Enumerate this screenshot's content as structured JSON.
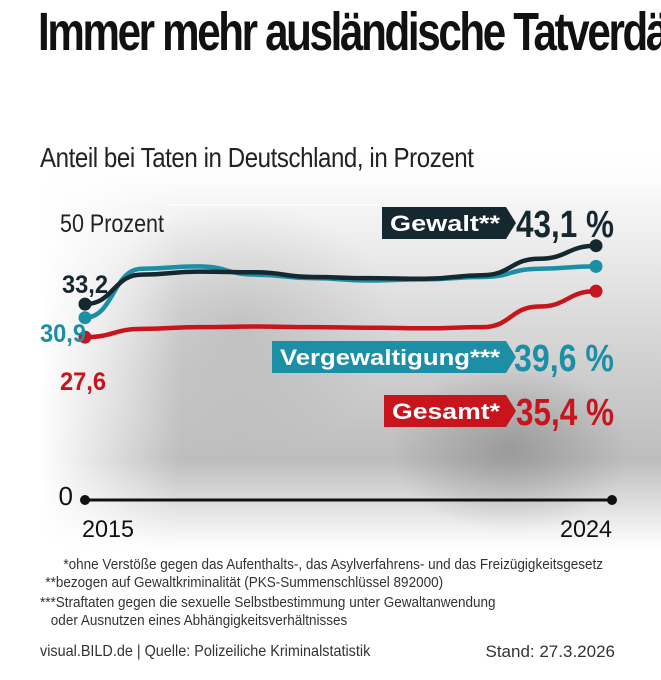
{
  "colors": {
    "gewalt": "#152830",
    "vergewaltigung": "#1c8fa6",
    "gesamt": "#c8141c"
  },
  "chart_data": {
    "type": "line",
    "title": "Immer mehr ausländische Tatverdächtige",
    "subtitle": "Anteil bei Taten in Deutschland, in Prozent",
    "x": [
      2015,
      2016,
      2017,
      2018,
      2019,
      2020,
      2021,
      2022,
      2023,
      2024
    ],
    "x_tick_labels": [
      "2015",
      "2024"
    ],
    "y_tick_labels": [
      "0",
      "50 Prozent"
    ],
    "ylim": [
      0,
      50
    ],
    "series": [
      {
        "name": "Gewalt**",
        "key": "gewalt",
        "values": [
          33.2,
          38.2,
          38.7,
          38.6,
          37.8,
          37.6,
          37.5,
          38.1,
          40.9,
          43.1
        ],
        "start_label": "33,2",
        "end_label": "43,1 %"
      },
      {
        "name": "Vergewaltigung***",
        "key": "vergewaltigung",
        "values": [
          30.9,
          39.2,
          39.6,
          38.2,
          37.6,
          37.2,
          37.4,
          37.8,
          39.2,
          39.6
        ],
        "start_label": "30,9",
        "end_label": "39,6 %"
      },
      {
        "name": "Gesamt*",
        "key": "gesamt",
        "values": [
          27.6,
          29.0,
          29.3,
          29.4,
          29.3,
          29.2,
          29.1,
          29.3,
          32.8,
          35.4
        ],
        "start_label": "27,6",
        "end_label": "35,4 %"
      }
    ]
  },
  "footnotes": {
    "f1": "*ohne Verstöße gegen das Aufenthalts-, das Asylverfahrens- und das Freizügigkeitsgesetz",
    "f2": "**bezogen auf Gewaltkriminalität (PKS-Summenschlüssel 892000)",
    "f3a": "***Straftaten gegen die sexuelle Selbstbestimmung unter Gewaltanwendung",
    "f3b": "oder Ausnutzen eines Abhängigkeitsverhältnisses"
  },
  "footer": {
    "source": "visual.BILD.de | Quelle: Polizeiliche Kriminalstatistik",
    "stand": "Stand: 27.3.2026"
  }
}
